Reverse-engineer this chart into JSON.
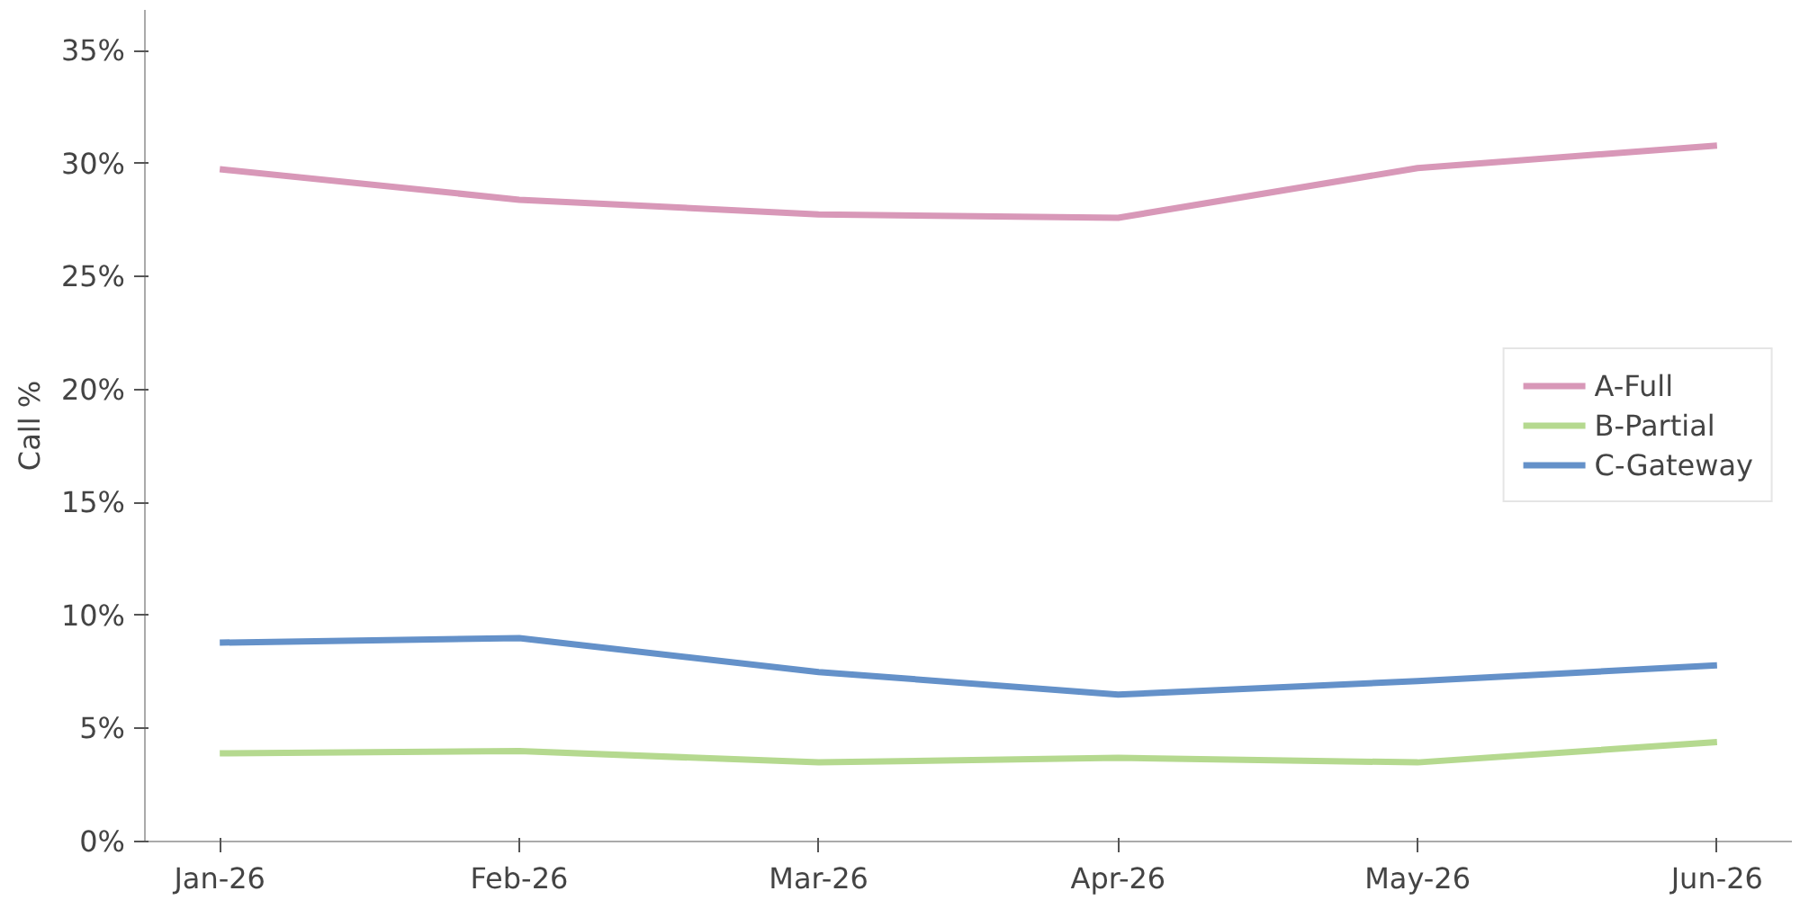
{
  "chart_data": {
    "type": "line",
    "ylabel": "Call %",
    "categories": [
      "Jan-26",
      "Feb-26",
      "Mar-26",
      "Apr-26",
      "May-26",
      "Jun-26"
    ],
    "series": [
      {
        "name": "A-Full",
        "color": "#d898b8",
        "values": [
          29.75,
          28.4,
          27.75,
          27.6,
          29.8,
          30.8
        ]
      },
      {
        "name": "B-Partial",
        "color": "#b5d98f",
        "values": [
          3.9,
          4.0,
          3.5,
          3.7,
          3.5,
          4.4
        ]
      },
      {
        "name": "C-Gateway",
        "color": "#6491c9",
        "values": [
          8.8,
          9.0,
          7.5,
          6.5,
          7.1,
          7.8
        ]
      }
    ],
    "ylim": [
      0,
      36.8
    ],
    "yticks": [
      {
        "value": 0,
        "label": "0%"
      },
      {
        "value": 5,
        "label": "5%"
      },
      {
        "value": 10,
        "label": "10%"
      },
      {
        "value": 15,
        "label": "15%"
      },
      {
        "value": 20,
        "label": "20%"
      },
      {
        "value": 25,
        "label": "25%"
      },
      {
        "value": 30,
        "label": "30%"
      },
      {
        "value": 35,
        "label": "35%"
      }
    ],
    "grid": false,
    "legend": "right",
    "line_style": "solid"
  }
}
